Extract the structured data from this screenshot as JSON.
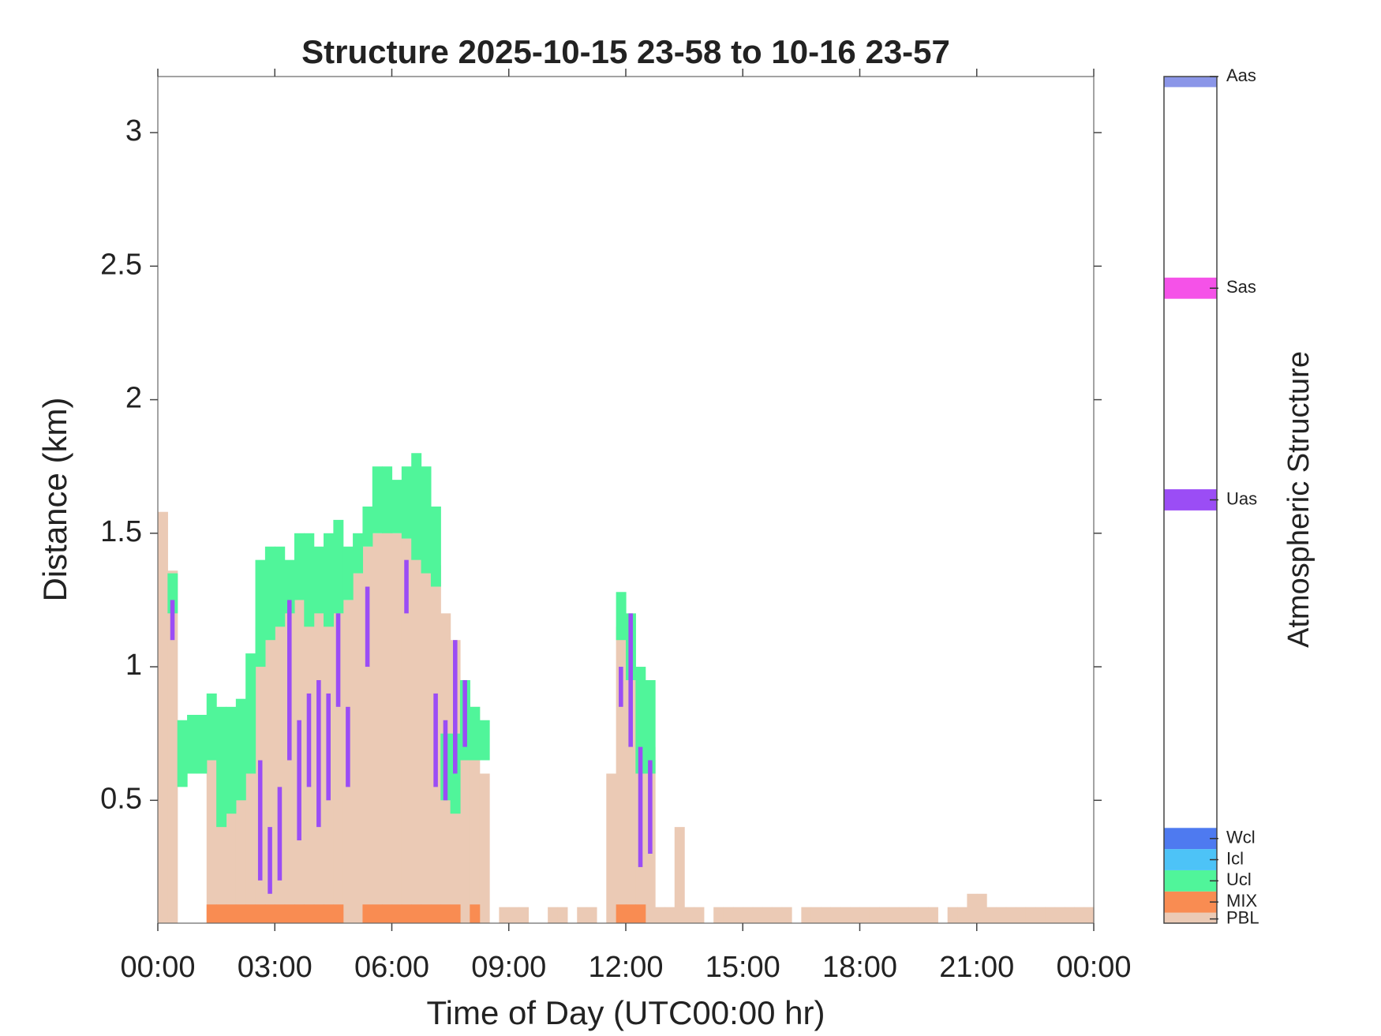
{
  "chart_data": {
    "type": "structure",
    "title": "Structure 2025-10-15 23-58 to 10-16 23-57",
    "xlabel": "Time of Day (UTC00:00 hr)",
    "ylabel": "Distance (km)",
    "x": [
      0,
      0.25,
      0.5,
      0.75,
      1,
      1.25,
      1.5,
      1.75,
      2,
      2.25,
      2.5,
      2.75,
      3,
      3.25,
      3.5,
      3.75,
      4,
      4.25,
      4.5,
      4.75,
      5,
      5.25,
      5.5,
      5.75,
      6,
      6.25,
      6.5,
      6.75,
      7,
      7.25,
      7.5,
      7.75,
      8,
      8.25,
      8.5,
      8.75,
      9,
      9.25,
      9.5,
      9.75,
      10,
      10.25,
      10.5,
      10.75,
      11,
      11.25,
      11.5,
      11.75,
      12,
      12.25,
      12.5,
      12.75,
      13,
      13.25,
      13.5,
      13.75,
      14,
      14.25,
      14.5,
      14.75,
      15,
      15.25,
      15.5,
      15.75,
      16,
      16.25,
      16.5,
      16.75,
      17,
      17.25,
      17.5,
      17.75,
      18,
      18.25,
      18.5,
      18.75,
      19,
      19.25,
      19.5,
      19.75,
      20,
      20.25,
      20.5,
      20.75,
      21,
      21.25,
      21.5,
      21.75,
      22,
      22.25,
      22.5,
      22.75,
      23,
      23.25,
      23.5,
      23.75
    ],
    "xlim": [
      0,
      24
    ],
    "xticks": [
      {
        "value": 0,
        "label": "00:00"
      },
      {
        "value": 3,
        "label": "03:00"
      },
      {
        "value": 6,
        "label": "06:00"
      },
      {
        "value": 9,
        "label": "09:00"
      },
      {
        "value": 12,
        "label": "12:00"
      },
      {
        "value": 15,
        "label": "15:00"
      },
      {
        "value": 18,
        "label": "18:00"
      },
      {
        "value": 21,
        "label": "21:00"
      },
      {
        "value": 24,
        "label": "00:00"
      }
    ],
    "ylim": [
      0.04,
      3.21
    ],
    "yticks": [
      0.5,
      1,
      1.5,
      2,
      2.5,
      3
    ],
    "series": [
      {
        "name": "PBL",
        "color": "#ebcab5",
        "values": [
          1.58,
          1.36,
          null,
          null,
          null,
          0.65,
          0.5,
          0.55,
          0.6,
          0.75,
          1.15,
          1.2,
          1.25,
          1.3,
          1.28,
          1.25,
          1.22,
          1.2,
          1.25,
          1.25,
          1.35,
          1.45,
          1.5,
          1.52,
          1.5,
          1.48,
          1.45,
          1.45,
          1.38,
          1.2,
          1.1,
          0.95,
          0.85,
          0.6,
          null,
          0.1,
          0.1,
          0.1,
          null,
          null,
          0.1,
          0.1,
          null,
          0.1,
          0.1,
          null,
          0.6,
          1.15,
          1.0,
          0.85,
          0.7,
          0.1,
          0.1,
          0.4,
          0.1,
          0.1,
          null,
          0.1,
          0.1,
          0.1,
          0.1,
          0.1,
          0.1,
          0.1,
          0.1,
          null,
          0.1,
          0.1,
          0.1,
          0.1,
          0.1,
          0.1,
          0.1,
          0.1,
          0.1,
          0.1,
          0.1,
          0.1,
          0.1,
          0.1,
          null,
          0.1,
          0.1,
          0.15,
          0.15,
          0.1,
          0.1,
          0.1,
          0.1,
          0.1,
          0.1,
          0.1,
          0.1,
          0.1,
          0.1,
          0.1
        ]
      },
      {
        "name": "Ucl",
        "color": "#50f59a",
        "base": [
          null,
          1.2,
          0.55,
          0.6,
          0.6,
          0.65,
          0.4,
          0.45,
          0.5,
          0.6,
          1.0,
          1.1,
          1.15,
          1.2,
          1.25,
          1.15,
          1.2,
          1.15,
          1.2,
          1.25,
          1.35,
          1.45,
          1.5,
          1.5,
          1.5,
          1.48,
          1.4,
          1.35,
          1.3,
          0.5,
          0.45,
          0.65,
          0.65,
          0.65,
          null,
          null,
          null,
          null,
          null,
          null,
          null,
          null,
          null,
          null,
          null,
          null,
          null,
          1.1,
          0.95,
          0.6,
          0.6,
          null,
          null,
          null,
          null,
          null,
          null,
          null,
          null,
          null,
          null,
          null,
          null,
          null,
          null,
          null,
          null,
          null,
          null,
          null,
          null,
          null,
          null,
          null,
          null,
          null,
          null,
          null,
          null,
          null,
          null,
          null,
          null,
          null,
          null,
          null,
          null,
          null,
          null,
          null,
          null,
          null,
          null,
          null,
          null,
          null
        ],
        "values": [
          null,
          1.35,
          0.8,
          0.82,
          0.82,
          0.9,
          0.85,
          0.85,
          0.88,
          1.05,
          1.4,
          1.45,
          1.45,
          1.4,
          1.5,
          1.5,
          1.45,
          1.5,
          1.55,
          1.45,
          1.5,
          1.6,
          1.75,
          1.75,
          1.7,
          1.75,
          1.8,
          1.75,
          1.6,
          0.75,
          0.75,
          0.95,
          0.85,
          0.8,
          null,
          null,
          null,
          null,
          null,
          null,
          null,
          null,
          null,
          null,
          null,
          null,
          null,
          1.28,
          1.2,
          1.0,
          0.95,
          null,
          null,
          null,
          null,
          null,
          null,
          null,
          null,
          null,
          null,
          null,
          null,
          null,
          null,
          null,
          null,
          null,
          null,
          null,
          null,
          null,
          null,
          null,
          null,
          null,
          null,
          null,
          null,
          null,
          null,
          null,
          null,
          null,
          null,
          null,
          null,
          null,
          null,
          null,
          null,
          null,
          null,
          null,
          null,
          null
        ]
      },
      {
        "name": "MIX",
        "color": "#f98c52",
        "values": [
          null,
          null,
          null,
          null,
          null,
          0.11,
          0.11,
          0.11,
          0.11,
          0.11,
          0.11,
          0.11,
          0.11,
          0.11,
          0.11,
          0.11,
          0.11,
          0.11,
          0.11,
          null,
          null,
          0.11,
          0.11,
          0.11,
          0.11,
          0.11,
          0.11,
          0.11,
          0.11,
          0.11,
          0.11,
          null,
          0.11,
          null,
          null,
          null,
          null,
          null,
          null,
          null,
          null,
          null,
          null,
          null,
          null,
          null,
          null,
          0.11,
          0.11,
          0.11,
          null,
          null,
          null,
          null,
          null,
          null,
          null,
          null,
          null,
          null,
          null,
          null,
          null,
          null,
          null,
          null,
          null,
          null,
          null,
          null,
          null,
          null,
          null,
          null,
          null,
          null,
          null,
          null,
          null,
          null,
          null,
          null,
          null,
          null,
          null,
          null,
          null,
          null,
          null,
          null,
          null,
          null,
          null,
          null,
          null,
          null
        ]
      },
      {
        "name": "Uas",
        "color": "#9b4df5",
        "base": [
          null,
          1.1,
          null,
          null,
          null,
          null,
          null,
          null,
          null,
          null,
          0.2,
          0.15,
          0.2,
          0.65,
          0.35,
          0.55,
          0.4,
          0.5,
          0.85,
          0.55,
          null,
          1.0,
          null,
          null,
          null,
          1.2,
          null,
          null,
          0.55,
          0.5,
          0.6,
          0.7,
          null,
          null,
          null,
          null,
          null,
          null,
          null,
          null,
          null,
          null,
          null,
          null,
          null,
          null,
          null,
          0.85,
          0.7,
          0.25,
          0.3,
          null,
          null,
          null,
          null,
          null,
          null,
          null,
          null,
          null,
          null,
          null,
          null,
          null,
          null,
          null,
          null,
          null,
          null,
          null,
          null,
          null,
          null,
          null,
          null,
          null,
          null,
          null,
          null,
          null,
          null,
          null,
          null,
          null,
          null,
          null,
          null,
          null,
          null,
          null,
          null,
          null,
          null,
          null,
          null,
          null
        ],
        "values": [
          null,
          1.25,
          null,
          null,
          null,
          null,
          null,
          null,
          null,
          null,
          0.65,
          0.4,
          0.55,
          1.25,
          0.8,
          0.9,
          0.95,
          0.9,
          1.2,
          0.85,
          null,
          1.3,
          null,
          null,
          null,
          1.4,
          null,
          null,
          0.9,
          0.8,
          1.1,
          0.95,
          null,
          null,
          null,
          null,
          null,
          null,
          null,
          null,
          null,
          null,
          null,
          null,
          null,
          null,
          null,
          1.0,
          1.2,
          0.7,
          0.65,
          null,
          null,
          null,
          null,
          null,
          null,
          null,
          null,
          null,
          null,
          null,
          null,
          null,
          null,
          null,
          null,
          null,
          null,
          null,
          null,
          null,
          null,
          null,
          null,
          null,
          null,
          null,
          null,
          null,
          null,
          null,
          null,
          null,
          null,
          null,
          null,
          null,
          null,
          null,
          null,
          null,
          null,
          null,
          null,
          null
        ]
      }
    ],
    "colorbar": {
      "label": "Atmospheric Structure",
      "lim": [
        0,
        40
      ],
      "ticks": [
        {
          "value": 0.2,
          "label": "PBL"
        },
        {
          "value": 1,
          "label": "MIX"
        },
        {
          "value": 2,
          "label": "Ucl"
        },
        {
          "value": 3,
          "label": "Icl"
        },
        {
          "value": 4,
          "label": "Wcl"
        },
        {
          "value": 20,
          "label": "Uas"
        },
        {
          "value": 30,
          "label": "Sas"
        },
        {
          "value": 40,
          "label": "Aas"
        }
      ],
      "colors": [
        "#ebcab5",
        "#f98c52",
        "#50f59a",
        "#4dc3f7",
        "#4e7af0",
        "#9b4df5",
        "#f552e8",
        "#8b96e8"
      ]
    }
  }
}
